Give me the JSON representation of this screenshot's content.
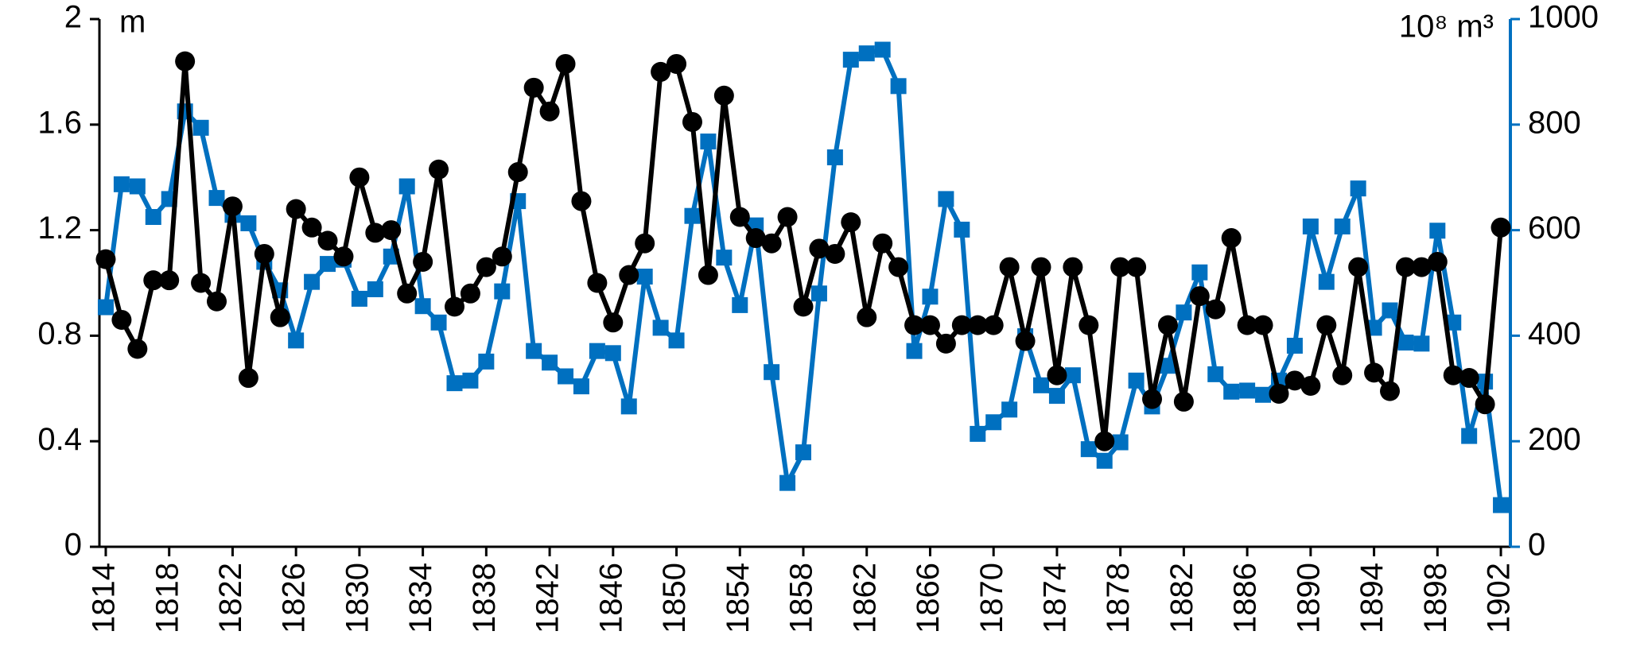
{
  "chart_data": {
    "type": "line",
    "y_label": "m",
    "y2_label": "10⁸ m³",
    "x": [
      1814,
      1815,
      1816,
      1817,
      1818,
      1819,
      1820,
      1821,
      1822,
      1823,
      1824,
      1825,
      1826,
      1827,
      1828,
      1829,
      1830,
      1831,
      1832,
      1833,
      1834,
      1835,
      1836,
      1837,
      1838,
      1839,
      1840,
      1841,
      1842,
      1843,
      1844,
      1845,
      1846,
      1847,
      1848,
      1849,
      1850,
      1851,
      1852,
      1853,
      1854,
      1855,
      1856,
      1857,
      1858,
      1859,
      1860,
      1861,
      1862,
      1863,
      1864,
      1865,
      1866,
      1867,
      1868,
      1869,
      1870,
      1871,
      1872,
      1873,
      1874,
      1875,
      1876,
      1877,
      1878,
      1879,
      1880,
      1881,
      1882,
      1883,
      1884,
      1885,
      1886,
      1887,
      1888,
      1889,
      1890,
      1891,
      1892,
      1893,
      1894,
      1895,
      1896,
      1897,
      1898,
      1899,
      1900,
      1901,
      1902
    ],
    "series": [
      {
        "color": "#000000",
        "marker": "circle",
        "axis": "y",
        "values": [
          1.09,
          0.86,
          0.75,
          1.01,
          1.01,
          1.84,
          1.0,
          0.93,
          1.29,
          0.64,
          1.11,
          0.87,
          1.28,
          1.21,
          1.16,
          1.1,
          1.4,
          1.19,
          1.2,
          0.96,
          1.08,
          1.43,
          0.91,
          0.96,
          1.06,
          1.1,
          1.42,
          1.74,
          1.65,
          1.83,
          1.31,
          1.0,
          0.85,
          1.03,
          1.15,
          1.8,
          1.83,
          1.61,
          1.03,
          1.71,
          1.25,
          1.17,
          1.15,
          1.25,
          0.91,
          1.13,
          1.11,
          1.23,
          0.87,
          1.15,
          1.06,
          0.84,
          0.84,
          0.77,
          0.84,
          0.84,
          0.84,
          1.06,
          0.78,
          1.06,
          0.65,
          1.06,
          0.84,
          0.4,
          1.06,
          1.06,
          0.56,
          0.84,
          0.55,
          0.95,
          0.9,
          1.17,
          0.84,
          0.84,
          0.58,
          0.63,
          0.61,
          0.84,
          0.65,
          1.06,
          0.66,
          0.59,
          1.06,
          1.06,
          1.08,
          0.65,
          0.64,
          0.54,
          1.21
        ]
      },
      {
        "color": "#0070c0",
        "marker": "square",
        "axis": "y2",
        "values": [
          454,
          687,
          683,
          625,
          659,
          825,
          794,
          661,
          629,
          613,
          540,
          486,
          391,
          502,
          536,
          544,
          470,
          488,
          550,
          683,
          456,
          425,
          310,
          315,
          351,
          484,
          655,
          371,
          349,
          323,
          304,
          371,
          367,
          266,
          512,
          415,
          391,
          627,
          768,
          548,
          458,
          609,
          331,
          121,
          179,
          480,
          738,
          923,
          935,
          942,
          873,
          371,
          474,
          659,
          601,
          214,
          236,
          260,
          399,
          306,
          286,
          325,
          185,
          163,
          198,
          315,
          266,
          343,
          444,
          520,
          327,
          294,
          296,
          288,
          315,
          381,
          607,
          502,
          607,
          679,
          415,
          448,
          387,
          385,
          599,
          425,
          210,
          313,
          79
        ]
      }
    ],
    "xlim": [
      1813.6,
      1902.6
    ],
    "xticks": [
      1814,
      1818,
      1822,
      1826,
      1830,
      1834,
      1838,
      1842,
      1846,
      1850,
      1854,
      1858,
      1862,
      1866,
      1870,
      1874,
      1878,
      1882,
      1886,
      1890,
      1894,
      1898,
      1902
    ],
    "ylim": [
      0,
      2
    ],
    "yticks": [
      0,
      {
        "value": 0.4,
        "label": "0.4"
      },
      {
        "value": 0.8,
        "label": "0.8"
      },
      {
        "value": 1.2,
        "label": "1.2"
      },
      {
        "value": 1.6,
        "label": "1.6"
      },
      2
    ],
    "y2lim": [
      0,
      1000
    ],
    "y2ticks": [
      0,
      200,
      400,
      600,
      800,
      1000
    ],
    "y2_color": "#0070c0"
  }
}
